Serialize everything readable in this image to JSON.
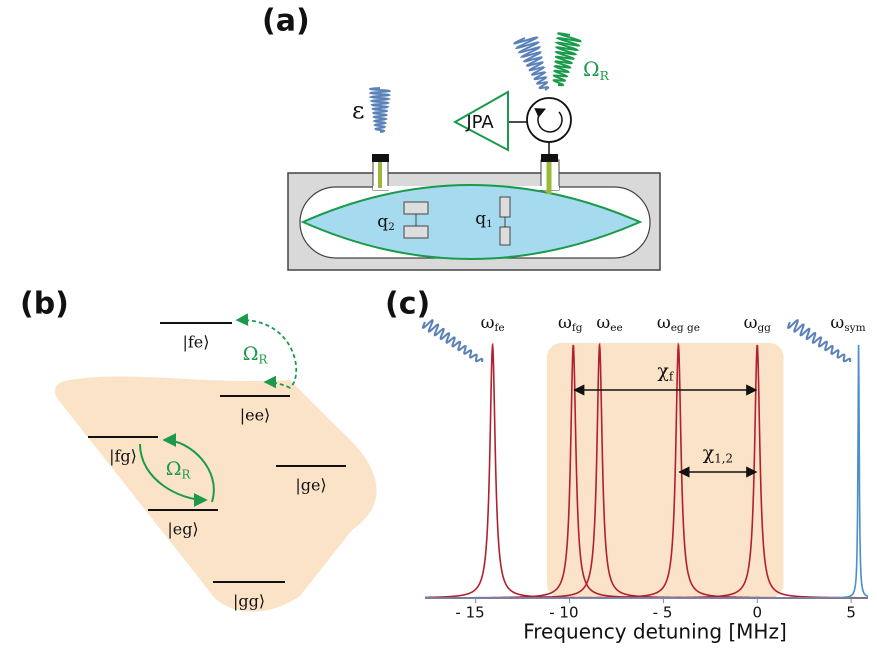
{
  "panel_a": {
    "label": "(a)",
    "epsilon": "ε",
    "amplifier": "JPA",
    "drive": {
      "symbol": "Ω",
      "sub": "R"
    },
    "qubit_2": {
      "symbol": "q",
      "sub": "2"
    },
    "qubit_1": {
      "symbol": "q",
      "sub": "1"
    }
  },
  "panel_b": {
    "label": "(b)",
    "levels": [
      "|fe⟩",
      "|ee⟩",
      "|fg⟩",
      "|ge⟩",
      "|eg⟩",
      "|gg⟩"
    ],
    "drive_upper": {
      "symbol": "Ω",
      "sub": "R"
    },
    "drive_lower": {
      "symbol": "Ω",
      "sub": "R"
    }
  },
  "chart_data": {
    "type": "line",
    "label": "(c)",
    "xlabel": "Frequency detuning [MHz]",
    "xlim": [
      -17.7,
      5.9
    ],
    "xticks": [
      {
        "value": -15,
        "label": "- 15"
      },
      {
        "value": -10,
        "label": "- 10"
      },
      {
        "value": -5,
        "label": "- 5"
      },
      0,
      5
    ],
    "shaded_range": [
      -11.2,
      1.4
    ],
    "shade_color": "#fbe3c8",
    "peaks": [
      {
        "symbol": "ω",
        "sub": "fe",
        "x": -14.1,
        "color": "#b0202e"
      },
      {
        "symbol": "ω",
        "sub": "fg",
        "x": -9.8,
        "color": "#b0202e"
      },
      {
        "symbol": "ω",
        "sub": "ee",
        "x": -8.4,
        "color": "#b0202e"
      },
      {
        "symbol": "ω",
        "sub": "eg ge",
        "x": -4.2,
        "color": "#b0202e"
      },
      {
        "symbol": "ω",
        "sub": "gg",
        "x": 0,
        "color": "#b0202e"
      },
      {
        "symbol": "ω",
        "sub": "sym",
        "x": 5.4,
        "color": "#4a8fc9"
      }
    ],
    "annotations": [
      {
        "symbol": "χ",
        "sub": "f",
        "from": -9.8,
        "to": 0
      },
      {
        "symbol": "χ",
        "sub": "1,2",
        "from": -4.2,
        "to": 0
      }
    ]
  }
}
